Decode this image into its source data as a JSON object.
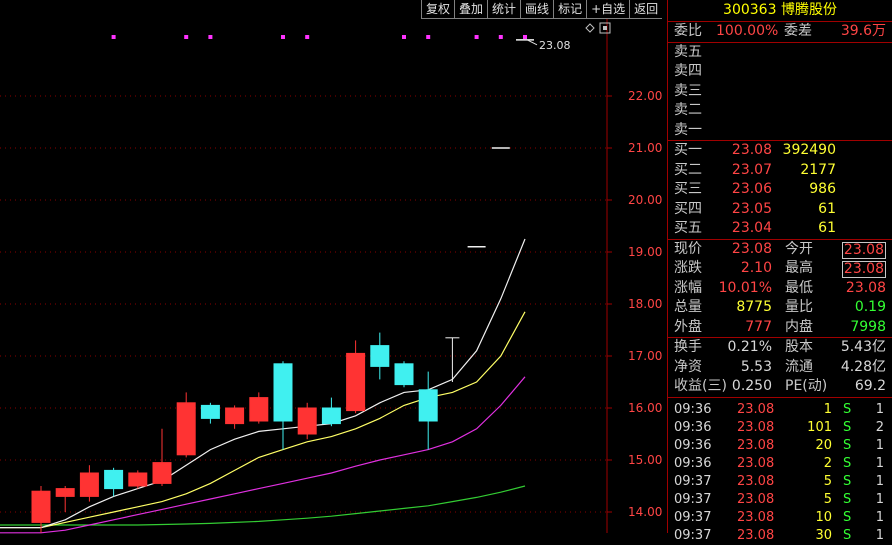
{
  "toolbar": [
    "复权",
    "叠加",
    "统计",
    "画线",
    "标记",
    "+自选",
    "返回"
  ],
  "price_axis": [
    {
      "label": "22.00",
      "value": 22
    },
    {
      "label": "21.00",
      "value": 21
    },
    {
      "label": "20.00",
      "value": 20
    },
    {
      "label": "19.00",
      "value": 19
    },
    {
      "label": "18.00",
      "value": 18
    },
    {
      "label": "17.00",
      "value": 17
    },
    {
      "label": "16.00",
      "value": 16
    },
    {
      "label": "15.00",
      "value": 15
    },
    {
      "label": "14.00",
      "value": 14
    }
  ],
  "chart_data": {
    "type": "candlestick",
    "ylim": [
      13.6,
      23.3
    ],
    "last_price_label": "23.08",
    "candles": [
      {
        "o": 13.8,
        "h": 14.5,
        "l": 13.6,
        "c": 14.4
      },
      {
        "o": 14.3,
        "h": 14.5,
        "l": 14.0,
        "c": 14.45
      },
      {
        "o": 14.3,
        "h": 14.9,
        "l": 14.2,
        "c": 14.75
      },
      {
        "o": 14.8,
        "h": 14.85,
        "l": 14.3,
        "c": 14.45
      },
      {
        "o": 14.5,
        "h": 14.8,
        "l": 14.45,
        "c": 14.75
      },
      {
        "o": 14.55,
        "h": 15.6,
        "l": 14.5,
        "c": 14.95
      },
      {
        "o": 15.1,
        "h": 16.3,
        "l": 15.05,
        "c": 16.1
      },
      {
        "o": 16.05,
        "h": 16.1,
        "l": 15.7,
        "c": 15.8
      },
      {
        "o": 15.7,
        "h": 16.05,
        "l": 15.6,
        "c": 16.0
      },
      {
        "o": 15.75,
        "h": 16.3,
        "l": 15.7,
        "c": 16.2
      },
      {
        "o": 16.85,
        "h": 16.9,
        "l": 15.2,
        "c": 15.75
      },
      {
        "o": 15.5,
        "h": 16.1,
        "l": 15.4,
        "c": 16.0
      },
      {
        "o": 16.0,
        "h": 16.2,
        "l": 15.65,
        "c": 15.7
      },
      {
        "o": 15.95,
        "h": 17.3,
        "l": 15.9,
        "c": 17.05
      },
      {
        "o": 17.2,
        "h": 17.45,
        "l": 16.55,
        "c": 16.8
      },
      {
        "o": 16.85,
        "h": 16.9,
        "l": 16.4,
        "c": 16.45
      },
      {
        "o": 16.35,
        "h": 16.7,
        "l": 15.2,
        "c": 15.75
      },
      {
        "o": 16.5,
        "h": 17.35,
        "l": 16.5,
        "c": 17.35
      },
      {
        "o": 19.1,
        "h": 19.1,
        "l": 19.1,
        "c": 19.1
      },
      {
        "o": 21.0,
        "h": 21.0,
        "l": 21.0,
        "c": 21.0
      },
      {
        "o": 23.08,
        "h": 23.08,
        "l": 23.08,
        "c": 23.08
      }
    ],
    "ma_white": [
      13.7,
      13.85,
      14.1,
      14.3,
      14.45,
      14.6,
      14.9,
      15.2,
      15.4,
      15.55,
      15.6,
      15.65,
      15.7,
      15.85,
      16.1,
      16.3,
      16.35,
      16.55,
      17.1,
      18.1,
      19.25
    ],
    "ma_yellow": [
      13.7,
      13.8,
      13.9,
      14.0,
      14.1,
      14.2,
      14.35,
      14.55,
      14.8,
      15.05,
      15.2,
      15.35,
      15.45,
      15.6,
      15.8,
      16.05,
      16.2,
      16.3,
      16.5,
      17.0,
      17.85
    ],
    "ma_magenta": [
      13.6,
      13.65,
      13.75,
      13.85,
      13.95,
      14.05,
      14.15,
      14.25,
      14.35,
      14.45,
      14.55,
      14.65,
      14.75,
      14.88,
      15.0,
      15.1,
      15.2,
      15.35,
      15.6,
      16.05,
      16.6
    ],
    "ma_green": [
      13.75,
      13.75,
      13.75,
      13.75,
      13.75,
      13.76,
      13.77,
      13.78,
      13.8,
      13.82,
      13.85,
      13.88,
      13.92,
      13.97,
      14.02,
      14.07,
      14.12,
      14.2,
      14.28,
      14.38,
      14.5
    ],
    "marker_indices": [
      3,
      6,
      7,
      10,
      11,
      15,
      16,
      18,
      19,
      20
    ]
  },
  "panel": {
    "title": "300363 博腾股份",
    "weibi": {
      "label1": "委比",
      "value1": "100.00%",
      "label2": "委差",
      "value2": "39.6万"
    },
    "sell": [
      {
        "label": "卖五"
      },
      {
        "label": "卖四"
      },
      {
        "label": "卖三"
      },
      {
        "label": "卖二"
      },
      {
        "label": "卖一"
      }
    ],
    "buy": [
      {
        "label": "买一",
        "price": "23.08",
        "vol": "392490"
      },
      {
        "label": "买二",
        "price": "23.07",
        "vol": "2177"
      },
      {
        "label": "买三",
        "price": "23.06",
        "vol": "986"
      },
      {
        "label": "买四",
        "price": "23.05",
        "vol": "61"
      },
      {
        "label": "买五",
        "price": "23.04",
        "vol": "61"
      }
    ],
    "quote": [
      {
        "l1": "现价",
        "v1": "23.08",
        "l2": "今开",
        "v2": "23.08"
      },
      {
        "l1": "涨跌",
        "v1": "2.10",
        "l2": "最高",
        "v2": "23.08"
      },
      {
        "l1": "涨幅",
        "v1": "10.01%",
        "l2": "最低",
        "v2": "23.08"
      },
      {
        "l1": "总量",
        "v1": "8775",
        "l2": "量比",
        "v2": "0.19"
      },
      {
        "l1": "外盘",
        "v1": "777",
        "l2": "内盘",
        "v2": "7998"
      }
    ],
    "stats": [
      {
        "l1": "换手",
        "v1": "0.21%",
        "l2": "股本",
        "v2": "5.43亿"
      },
      {
        "l1": "净资",
        "v1": "5.53",
        "l2": "流通",
        "v2": "4.28亿"
      },
      {
        "l1": "收益(三)",
        "v1": "0.250",
        "l2": "PE(动)",
        "v2": "69.2"
      }
    ],
    "ticks": [
      {
        "time": "09:36",
        "price": "23.08",
        "vol": "1",
        "side": "S",
        "n": "1"
      },
      {
        "time": "09:36",
        "price": "23.08",
        "vol": "101",
        "side": "S",
        "n": "2"
      },
      {
        "time": "09:36",
        "price": "23.08",
        "vol": "20",
        "side": "S",
        "n": "1"
      },
      {
        "time": "09:36",
        "price": "23.08",
        "vol": "2",
        "side": "S",
        "n": "1"
      },
      {
        "time": "09:37",
        "price": "23.08",
        "vol": "5",
        "side": "S",
        "n": "1"
      },
      {
        "time": "09:37",
        "price": "23.08",
        "vol": "5",
        "side": "S",
        "n": "1"
      },
      {
        "time": "09:37",
        "price": "23.08",
        "vol": "10",
        "side": "S",
        "n": "1"
      },
      {
        "time": "09:37",
        "price": "23.08",
        "vol": "30",
        "side": "S",
        "n": "1"
      }
    ]
  }
}
